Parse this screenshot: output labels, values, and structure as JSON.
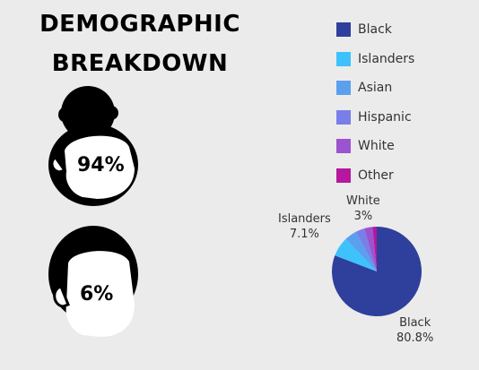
{
  "header": {
    "line1": "DEMOGRAPHIC",
    "line2": "BREAKDOWN"
  },
  "faces": [
    {
      "icon": "woman-head-icon",
      "value": "94%"
    },
    {
      "icon": "man-head-icon",
      "value": "6%"
    }
  ],
  "chart_data": {
    "type": "pie",
    "title": "",
    "slices": [
      {
        "name": "Black",
        "value": 80.8,
        "color": "#2e3f9c"
      },
      {
        "name": "Islanders",
        "value": 7.1,
        "color": "#3ec2fb"
      },
      {
        "name": "Asian",
        "value": 4.4,
        "color": "#5aa0ef"
      },
      {
        "name": "Hispanic",
        "value": 3.2,
        "color": "#7a7ee8"
      },
      {
        "name": "White",
        "value": 3.0,
        "color": "#9b53cf"
      },
      {
        "name": "Other",
        "value": 1.5,
        "color": "#b5179e"
      }
    ],
    "legend": [
      "Black",
      "Islanders",
      "Asian",
      "Hispanic",
      "White",
      "Other"
    ],
    "legend_position": "top-right",
    "data_labels": [
      {
        "name": "Black",
        "text": "80.8%"
      },
      {
        "name": "Islanders",
        "text": "7.1%"
      },
      {
        "name": "White",
        "text": "3%"
      }
    ]
  }
}
